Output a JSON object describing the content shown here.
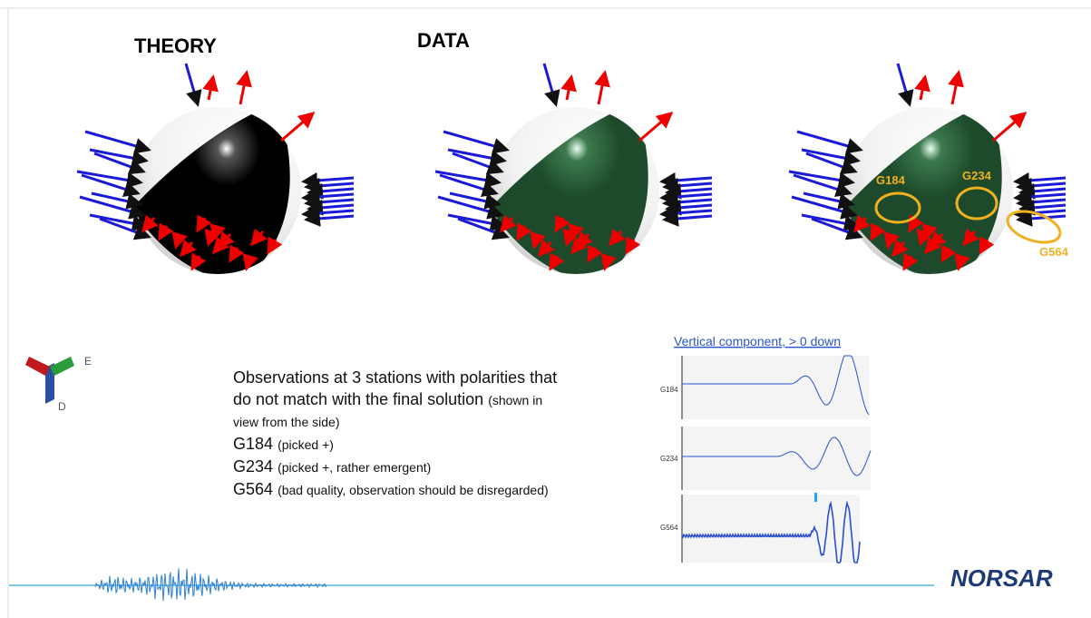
{
  "slide": {
    "headings": {
      "theory": "THEORY",
      "data": "DATA"
    },
    "station_labels": [
      "G184",
      "G234",
      "G564"
    ],
    "axes": {
      "east": "E",
      "down": "D"
    },
    "trace_title": "Vertical component, > 0 down",
    "traces": [
      "G184",
      "G234",
      "G564"
    ],
    "text": {
      "line1": "Observations at 3 stations with polarities that",
      "line2": "do not match with the final solution",
      "line2_note": "(shown in",
      "line3": "view from the side)",
      "items": [
        {
          "station": "G184",
          "detail": "(picked +)"
        },
        {
          "station": "G234",
          "detail": "(picked +, rather emergent)"
        },
        {
          "station": "G564",
          "detail": "(bad quality, observation should be disregarded)"
        }
      ]
    },
    "logo": "NORSAR"
  }
}
